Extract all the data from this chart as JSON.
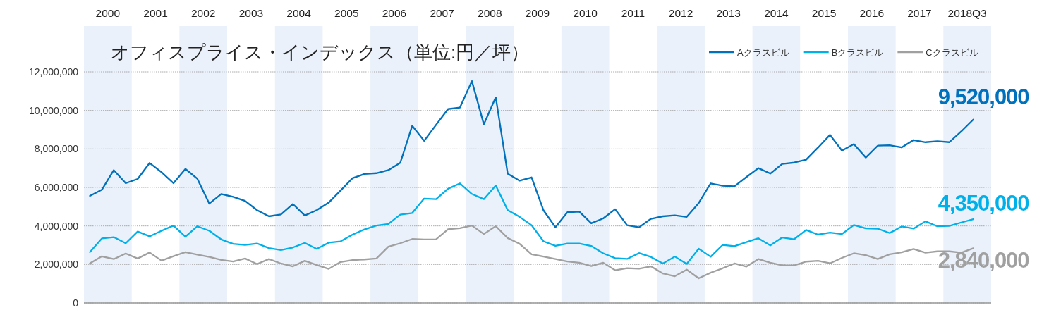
{
  "chart_data": {
    "type": "line",
    "title": "オフィスプライス・インデックス（単位:円／坪）",
    "x": [
      2000.125,
      2000.375,
      2000.625,
      2000.875,
      2001.125,
      2001.375,
      2001.625,
      2001.875,
      2002.125,
      2002.375,
      2002.625,
      2002.875,
      2003.125,
      2003.375,
      2003.625,
      2003.875,
      2004.125,
      2004.375,
      2004.625,
      2004.875,
      2005.125,
      2005.375,
      2005.625,
      2005.875,
      2006.125,
      2006.375,
      2006.625,
      2006.875,
      2007.125,
      2007.375,
      2007.625,
      2007.875,
      2008.125,
      2008.375,
      2008.625,
      2008.875,
      2009.125,
      2009.375,
      2009.625,
      2009.875,
      2010.125,
      2010.375,
      2010.625,
      2010.875,
      2011.125,
      2011.375,
      2011.625,
      2011.875,
      2012.125,
      2012.375,
      2012.625,
      2012.875,
      2013.125,
      2013.375,
      2013.625,
      2013.875,
      2014.125,
      2014.375,
      2014.625,
      2014.875,
      2015.125,
      2015.375,
      2015.625,
      2015.875,
      2016.125,
      2016.375,
      2016.625,
      2016.875,
      2017.125,
      2017.375,
      2017.625,
      2017.875,
      2018.125,
      2018.375,
      2018.625
    ],
    "series": [
      {
        "name": "Aクラスビル",
        "color": "#0071bc",
        "values": [
          5560000,
          5880000,
          6900000,
          6220000,
          6440000,
          7270000,
          6790000,
          6220000,
          6960000,
          6450000,
          5160000,
          5660000,
          5510000,
          5300000,
          4820000,
          4500000,
          4600000,
          5140000,
          4540000,
          4820000,
          5210000,
          5840000,
          6480000,
          6700000,
          6740000,
          6900000,
          7280000,
          9200000,
          8420000,
          9250000,
          10070000,
          10150000,
          11520000,
          9280000,
          10680000,
          6710000,
          6350000,
          6520000,
          4810000,
          3930000,
          4710000,
          4740000,
          4140000,
          4390000,
          4870000,
          4040000,
          3930000,
          4370000,
          4500000,
          4550000,
          4470000,
          5190000,
          6210000,
          6090000,
          6060000,
          6540000,
          7000000,
          6720000,
          7220000,
          7290000,
          7440000,
          8070000,
          8730000,
          7910000,
          8250000,
          7550000,
          8170000,
          8190000,
          8080000,
          8460000,
          8350000,
          8400000,
          8350000,
          8910000,
          9520000
        ],
        "value_labels": [
          null,
          null,
          null,
          null,
          null,
          null,
          null,
          null,
          null,
          null,
          null,
          null,
          null,
          null,
          null,
          null,
          null,
          null,
          null,
          null,
          null,
          null,
          null,
          null,
          null,
          null,
          null,
          null,
          null,
          null,
          null,
          null,
          null,
          null,
          null,
          null,
          null,
          null,
          null,
          null,
          null,
          null,
          null,
          null,
          null,
          null,
          null,
          null,
          null,
          null,
          null,
          null,
          null,
          null,
          null,
          null,
          null,
          null,
          null,
          null,
          null,
          null,
          null,
          null,
          null,
          null,
          null,
          null,
          null,
          null,
          null,
          null,
          null,
          null,
          "9,520,000"
        ]
      },
      {
        "name": "Bクラスビル",
        "color": "#00b0e8",
        "values": [
          2640000,
          3350000,
          3420000,
          3100000,
          3710000,
          3460000,
          3750000,
          4020000,
          3440000,
          3980000,
          3750000,
          3300000,
          3070000,
          3010000,
          3090000,
          2850000,
          2750000,
          2880000,
          3120000,
          2810000,
          3130000,
          3200000,
          3550000,
          3820000,
          4020000,
          4100000,
          4590000,
          4670000,
          5420000,
          5390000,
          5930000,
          6210000,
          5660000,
          5390000,
          6100000,
          4820000,
          4470000,
          4040000,
          3200000,
          2970000,
          3090000,
          3090000,
          2960000,
          2580000,
          2330000,
          2290000,
          2590000,
          2390000,
          2050000,
          2410000,
          2030000,
          2820000,
          2400000,
          3010000,
          2950000,
          3160000,
          3360000,
          2990000,
          3400000,
          3310000,
          3790000,
          3550000,
          3650000,
          3580000,
          4050000,
          3870000,
          3860000,
          3630000,
          3970000,
          3860000,
          4240000,
          3980000,
          4000000,
          4180000,
          4350000
        ],
        "value_labels": [
          null,
          null,
          null,
          null,
          null,
          null,
          null,
          null,
          null,
          null,
          null,
          null,
          null,
          null,
          null,
          null,
          null,
          null,
          null,
          null,
          null,
          null,
          null,
          null,
          null,
          null,
          null,
          null,
          null,
          null,
          null,
          null,
          null,
          null,
          null,
          null,
          null,
          null,
          null,
          null,
          null,
          null,
          null,
          null,
          null,
          null,
          null,
          null,
          null,
          null,
          null,
          null,
          null,
          null,
          null,
          null,
          null,
          null,
          null,
          null,
          null,
          null,
          null,
          null,
          null,
          null,
          null,
          null,
          null,
          null,
          null,
          null,
          null,
          null,
          "4,350,000"
        ]
      },
      {
        "name": "Cクラスビル",
        "color": "#a0a0a0",
        "values": [
          2060000,
          2420000,
          2280000,
          2570000,
          2310000,
          2620000,
          2200000,
          2430000,
          2640000,
          2510000,
          2390000,
          2240000,
          2150000,
          2310000,
          2020000,
          2280000,
          2050000,
          1900000,
          2190000,
          1970000,
          1770000,
          2130000,
          2230000,
          2260000,
          2310000,
          2920000,
          3100000,
          3320000,
          3300000,
          3310000,
          3830000,
          3880000,
          4020000,
          3580000,
          3990000,
          3370000,
          3070000,
          2530000,
          2410000,
          2280000,
          2150000,
          2090000,
          1920000,
          2090000,
          1700000,
          1810000,
          1780000,
          1900000,
          1530000,
          1390000,
          1730000,
          1280000,
          1570000,
          1800000,
          2050000,
          1890000,
          2280000,
          2090000,
          1950000,
          1950000,
          2150000,
          2190000,
          2060000,
          2340000,
          2580000,
          2480000,
          2280000,
          2530000,
          2630000,
          2800000,
          2610000,
          2680000,
          2680000,
          2610000,
          2840000
        ],
        "value_labels": [
          null,
          null,
          null,
          null,
          null,
          null,
          null,
          null,
          null,
          null,
          null,
          null,
          null,
          null,
          null,
          null,
          null,
          null,
          null,
          null,
          null,
          null,
          null,
          null,
          null,
          null,
          null,
          null,
          null,
          null,
          null,
          null,
          null,
          null,
          null,
          null,
          null,
          null,
          null,
          null,
          null,
          null,
          null,
          null,
          null,
          null,
          null,
          null,
          null,
          null,
          null,
          null,
          null,
          null,
          null,
          null,
          null,
          null,
          null,
          null,
          null,
          null,
          null,
          null,
          null,
          null,
          null,
          null,
          null,
          null,
          null,
          null,
          null,
          null,
          "2,840,000"
        ]
      }
    ],
    "xlim": [
      2000,
      2019
    ],
    "xticks": [
      {
        "value": 2000.5,
        "label": "2000"
      },
      {
        "value": 2001.5,
        "label": "2001"
      },
      {
        "value": 2002.5,
        "label": "2002"
      },
      {
        "value": 2003.5,
        "label": "2003"
      },
      {
        "value": 2004.5,
        "label": "2004"
      },
      {
        "value": 2005.5,
        "label": "2005"
      },
      {
        "value": 2006.5,
        "label": "2006"
      },
      {
        "value": 2007.5,
        "label": "2007"
      },
      {
        "value": 2008.5,
        "label": "2008"
      },
      {
        "value": 2009.5,
        "label": "2009"
      },
      {
        "value": 2010.5,
        "label": "2010"
      },
      {
        "value": 2011.5,
        "label": "2011"
      },
      {
        "value": 2012.5,
        "label": "2012"
      },
      {
        "value": 2013.5,
        "label": "2013"
      },
      {
        "value": 2014.5,
        "label": "2014"
      },
      {
        "value": 2015.5,
        "label": "2015"
      },
      {
        "value": 2016.5,
        "label": "2016"
      },
      {
        "value": 2017.5,
        "label": "2017"
      },
      {
        "value": 2018.5,
        "label": "2018Q3"
      }
    ],
    "ylim": [
      0,
      12000000
    ],
    "yticks": [
      0,
      {
        "value": 2000000,
        "label": "2,000,000"
      },
      {
        "value": 4000000,
        "label": "4,000,000"
      },
      {
        "value": 6000000,
        "label": "6,000,000"
      },
      {
        "value": 8000000,
        "label": "8,000,000"
      },
      {
        "value": 10000000,
        "label": "10,000,000"
      },
      {
        "value": 12000000,
        "label": "12,000,000"
      }
    ],
    "bands": [
      {
        "axis": "x",
        "from": 2000,
        "to": 2001,
        "color": "#eaf1fa"
      },
      {
        "axis": "x",
        "from": 2002,
        "to": 2003,
        "color": "#eaf1fa"
      },
      {
        "axis": "x",
        "from": 2004,
        "to": 2005,
        "color": "#eaf1fa"
      },
      {
        "axis": "x",
        "from": 2006,
        "to": 2007,
        "color": "#eaf1fa"
      },
      {
        "axis": "x",
        "from": 2008,
        "to": 2009,
        "color": "#eaf1fa"
      },
      {
        "axis": "x",
        "from": 2010,
        "to": 2011,
        "color": "#eaf1fa"
      },
      {
        "axis": "x",
        "from": 2012,
        "to": 2013,
        "color": "#eaf1fa"
      },
      {
        "axis": "x",
        "from": 2014,
        "to": 2015,
        "color": "#eaf1fa"
      },
      {
        "axis": "x",
        "from": 2016,
        "to": 2017,
        "color": "#eaf1fa"
      },
      {
        "axis": "x",
        "from": 2018,
        "to": 2019,
        "color": "#eaf1fa"
      }
    ],
    "grid": "y",
    "legend": "top right",
    "marker": "none",
    "line_style": "solid"
  }
}
